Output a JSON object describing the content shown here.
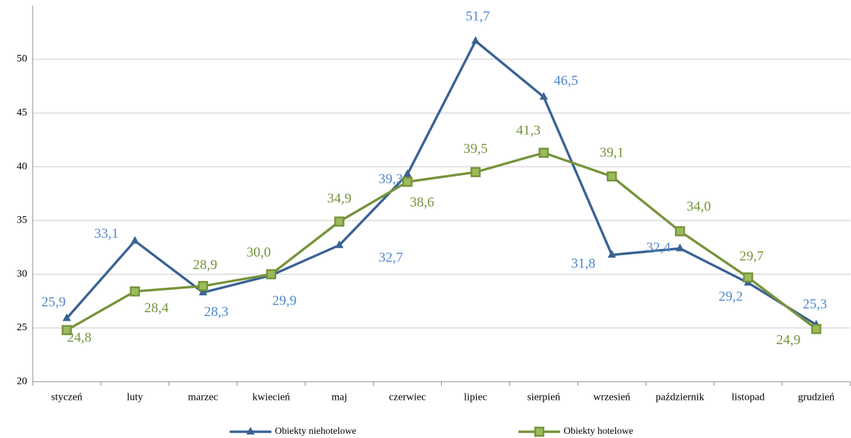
{
  "chart_data": {
    "type": "line",
    "categories": [
      "styczeń",
      "luty",
      "marzec",
      "kwiecień",
      "maj",
      "czerwiec",
      "lipiec",
      "sierpień",
      "wrzesień",
      "październik",
      "listopad",
      "grudzień"
    ],
    "series": [
      {
        "name": "Obiekty niehotelowe",
        "color": "#3a6294",
        "label_color": "#4f88cc",
        "marker": "triangle",
        "values": [
          25.9,
          33.1,
          28.3,
          29.9,
          32.7,
          39.3,
          51.7,
          46.5,
          31.8,
          32.4,
          29.2,
          25.3
        ],
        "value_labels": [
          "25,9",
          "33,1",
          "28,3",
          "29,9",
          "32,7",
          "39,3",
          "51,7",
          "46,5",
          "31,8",
          "32,4",
          "29,2",
          "25,3"
        ]
      },
      {
        "name": "Obiekty hotelowe",
        "color": "#77933c",
        "label_color": "#77933c",
        "marker": "square",
        "values": [
          24.8,
          28.4,
          28.9,
          30.0,
          34.9,
          38.6,
          39.5,
          41.3,
          39.1,
          34.0,
          29.7,
          24.9
        ],
        "value_labels": [
          "24,8",
          "28,4",
          "28,9",
          "30,0",
          "34,9",
          "38,6",
          "39,5",
          "41,3",
          "39,1",
          "34,0",
          "29,7",
          "24,9"
        ]
      }
    ],
    "ylim": [
      20,
      55
    ],
    "yticks": [
      20,
      25,
      30,
      35,
      40,
      45,
      50
    ],
    "grid": true,
    "legend": "bottom"
  }
}
